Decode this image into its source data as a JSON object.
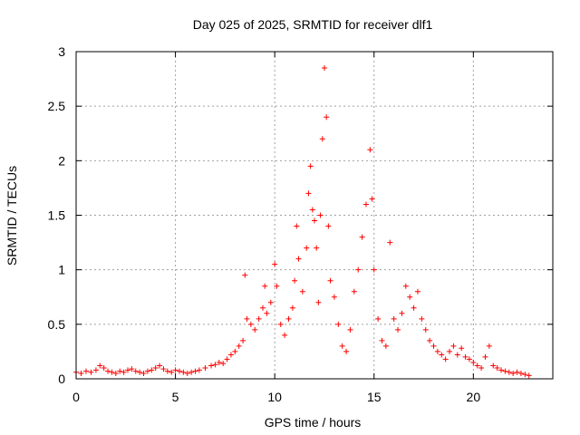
{
  "chart_data": {
    "type": "scatter",
    "title": "Day 025 of 2025, SRMTID for receiver dlf1",
    "xlabel": "GPS time / hours",
    "ylabel": "SRMTID / TECUs",
    "xlim": [
      0,
      24
    ],
    "ylim": [
      0,
      3
    ],
    "xticks": [
      0,
      5,
      10,
      15,
      20
    ],
    "xtick_labels": [
      "0",
      "5",
      "10",
      "15",
      "20"
    ],
    "yticks": [
      0,
      0.5,
      1,
      1.5,
      2,
      2.5,
      3
    ],
    "ytick_labels": [
      "0",
      "0.5",
      "1",
      "1.5",
      "2",
      "2.5",
      "3"
    ],
    "grid": true,
    "marker": "+",
    "color": "#ff0000",
    "series": [
      {
        "name": "dlf1",
        "points": [
          [
            0.0,
            0.06
          ],
          [
            0.25,
            0.05
          ],
          [
            0.5,
            0.07
          ],
          [
            0.75,
            0.06
          ],
          [
            1.0,
            0.08
          ],
          [
            1.2,
            0.12
          ],
          [
            1.4,
            0.1
          ],
          [
            1.6,
            0.07
          ],
          [
            1.8,
            0.06
          ],
          [
            2.0,
            0.05
          ],
          [
            2.2,
            0.07
          ],
          [
            2.4,
            0.06
          ],
          [
            2.6,
            0.08
          ],
          [
            2.8,
            0.09
          ],
          [
            3.0,
            0.07
          ],
          [
            3.2,
            0.06
          ],
          [
            3.4,
            0.05
          ],
          [
            3.6,
            0.07
          ],
          [
            3.8,
            0.08
          ],
          [
            4.0,
            0.1
          ],
          [
            4.2,
            0.12
          ],
          [
            4.4,
            0.09
          ],
          [
            4.6,
            0.07
          ],
          [
            4.8,
            0.06
          ],
          [
            5.0,
            0.08
          ],
          [
            5.2,
            0.07
          ],
          [
            5.4,
            0.06
          ],
          [
            5.6,
            0.05
          ],
          [
            5.8,
            0.06
          ],
          [
            6.0,
            0.07
          ],
          [
            6.2,
            0.08
          ],
          [
            6.5,
            0.1
          ],
          [
            6.8,
            0.12
          ],
          [
            7.0,
            0.13
          ],
          [
            7.2,
            0.15
          ],
          [
            7.4,
            0.14
          ],
          [
            7.6,
            0.18
          ],
          [
            7.8,
            0.22
          ],
          [
            8.0,
            0.25
          ],
          [
            8.2,
            0.3
          ],
          [
            8.4,
            0.35
          ],
          [
            8.5,
            0.95
          ],
          [
            8.6,
            0.55
          ],
          [
            8.8,
            0.5
          ],
          [
            9.0,
            0.45
          ],
          [
            9.2,
            0.55
          ],
          [
            9.4,
            0.65
          ],
          [
            9.5,
            0.85
          ],
          [
            9.6,
            0.6
          ],
          [
            9.8,
            0.7
          ],
          [
            10.0,
            1.05
          ],
          [
            10.1,
            0.85
          ],
          [
            10.3,
            0.5
          ],
          [
            10.5,
            0.4
          ],
          [
            10.7,
            0.55
          ],
          [
            10.9,
            0.65
          ],
          [
            11.0,
            0.9
          ],
          [
            11.1,
            1.4
          ],
          [
            11.2,
            1.1
          ],
          [
            11.4,
            0.8
          ],
          [
            11.6,
            1.2
          ],
          [
            11.7,
            1.7
          ],
          [
            11.8,
            1.95
          ],
          [
            11.9,
            1.55
          ],
          [
            12.0,
            1.45
          ],
          [
            12.1,
            1.2
          ],
          [
            12.2,
            0.7
          ],
          [
            12.3,
            1.5
          ],
          [
            12.4,
            2.2
          ],
          [
            12.5,
            2.85
          ],
          [
            12.6,
            2.4
          ],
          [
            12.7,
            1.4
          ],
          [
            12.8,
            0.9
          ],
          [
            13.0,
            0.75
          ],
          [
            13.2,
            0.5
          ],
          [
            13.4,
            0.3
          ],
          [
            13.6,
            0.25
          ],
          [
            13.8,
            0.45
          ],
          [
            14.0,
            0.8
          ],
          [
            14.2,
            1.0
          ],
          [
            14.4,
            1.3
          ],
          [
            14.6,
            1.6
          ],
          [
            14.8,
            2.1
          ],
          [
            14.9,
            1.65
          ],
          [
            15.0,
            1.0
          ],
          [
            15.2,
            0.55
          ],
          [
            15.4,
            0.35
          ],
          [
            15.6,
            0.3
          ],
          [
            15.8,
            1.25
          ],
          [
            16.0,
            0.55
          ],
          [
            16.2,
            0.45
          ],
          [
            16.4,
            0.6
          ],
          [
            16.6,
            0.85
          ],
          [
            16.8,
            0.75
          ],
          [
            17.0,
            0.65
          ],
          [
            17.2,
            0.8
          ],
          [
            17.4,
            0.55
          ],
          [
            17.6,
            0.45
          ],
          [
            17.8,
            0.35
          ],
          [
            18.0,
            0.3
          ],
          [
            18.2,
            0.25
          ],
          [
            18.4,
            0.22
          ],
          [
            18.6,
            0.18
          ],
          [
            18.8,
            0.25
          ],
          [
            19.0,
            0.3
          ],
          [
            19.2,
            0.22
          ],
          [
            19.4,
            0.28
          ],
          [
            19.6,
            0.2
          ],
          [
            19.8,
            0.18
          ],
          [
            20.0,
            0.15
          ],
          [
            20.2,
            0.12
          ],
          [
            20.4,
            0.1
          ],
          [
            20.6,
            0.2
          ],
          [
            20.8,
            0.3
          ],
          [
            21.0,
            0.12
          ],
          [
            21.2,
            0.1
          ],
          [
            21.4,
            0.08
          ],
          [
            21.6,
            0.07
          ],
          [
            21.8,
            0.06
          ],
          [
            22.0,
            0.05
          ],
          [
            22.2,
            0.06
          ],
          [
            22.4,
            0.05
          ],
          [
            22.6,
            0.04
          ],
          [
            22.8,
            0.03
          ]
        ]
      }
    ]
  }
}
